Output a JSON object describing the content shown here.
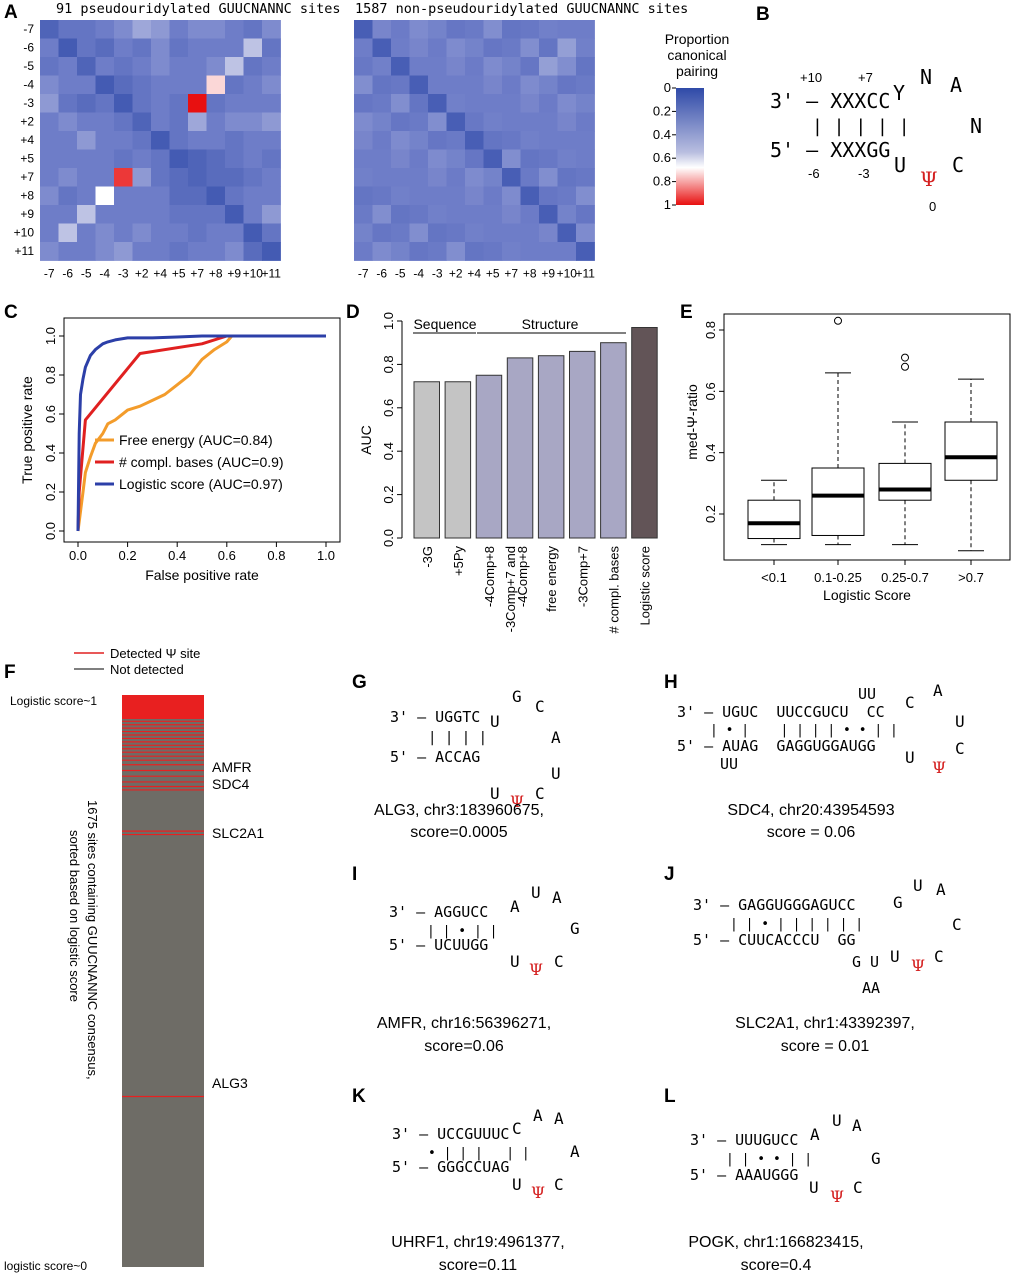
{
  "panel_letters": {
    "A": "A",
    "B": "B",
    "C": "C",
    "D": "D",
    "E": "E",
    "F": "F",
    "G": "G",
    "H": "H",
    "I": "I",
    "J": "J",
    "K": "K",
    "L": "L"
  },
  "panelA": {
    "title_left": "91 pseudouridylated GUUCNANNC sites",
    "title_right": "1587 non-pseudouridylated GUUCNANNC sites",
    "row_labels": [
      "-7",
      "-6",
      "-5",
      "-4",
      "-3",
      "+2",
      "+4",
      "+5",
      "+7",
      "+8",
      "+9",
      "+10",
      "+11"
    ],
    "col_labels": [
      "-7",
      "-6",
      "-5",
      "-4",
      "-3",
      "+2",
      "+4",
      "+5",
      "+7",
      "+8",
      "+9",
      "+10",
      "+11"
    ],
    "left_matrix": [
      [
        0.15,
        0.25,
        0.25,
        0.3,
        0.35,
        0.45,
        0.4,
        0.3,
        0.35,
        0.35,
        0.3,
        0.25,
        0.35
      ],
      [
        0.3,
        0.1,
        0.25,
        0.2,
        0.3,
        0.25,
        0.35,
        0.25,
        0.3,
        0.3,
        0.3,
        0.55,
        0.25
      ],
      [
        0.25,
        0.3,
        0.15,
        0.3,
        0.25,
        0.3,
        0.35,
        0.3,
        0.3,
        0.35,
        0.55,
        0.25,
        0.3
      ],
      [
        0.35,
        0.3,
        0.3,
        0.1,
        0.2,
        0.25,
        0.3,
        0.3,
        0.3,
        0.75,
        0.25,
        0.3,
        0.35
      ],
      [
        0.4,
        0.25,
        0.2,
        0.25,
        0.1,
        0.25,
        0.3,
        0.25,
        1.0,
        0.25,
        0.3,
        0.3,
        0.3
      ],
      [
        0.3,
        0.35,
        0.3,
        0.3,
        0.25,
        0.15,
        0.3,
        0.25,
        0.45,
        0.3,
        0.35,
        0.35,
        0.4
      ],
      [
        0.3,
        0.3,
        0.4,
        0.3,
        0.3,
        0.25,
        0.1,
        0.25,
        0.3,
        0.3,
        0.25,
        0.3,
        0.3
      ],
      [
        0.3,
        0.3,
        0.3,
        0.3,
        0.25,
        0.3,
        0.25,
        0.1,
        0.15,
        0.2,
        0.25,
        0.3,
        0.25
      ],
      [
        0.3,
        0.35,
        0.3,
        0.3,
        0.95,
        0.4,
        0.25,
        0.2,
        0.15,
        0.2,
        0.2,
        0.25,
        0.3
      ],
      [
        0.35,
        0.25,
        0.3,
        0.7,
        0.3,
        0.3,
        0.3,
        0.2,
        0.2,
        0.1,
        0.25,
        0.3,
        0.3
      ],
      [
        0.3,
        0.3,
        0.55,
        0.3,
        0.3,
        0.3,
        0.3,
        0.25,
        0.25,
        0.25,
        0.1,
        0.3,
        0.4
      ],
      [
        0.3,
        0.55,
        0.3,
        0.35,
        0.3,
        0.35,
        0.3,
        0.3,
        0.25,
        0.3,
        0.3,
        0.1,
        0.25
      ],
      [
        0.35,
        0.3,
        0.3,
        0.35,
        0.4,
        0.3,
        0.3,
        0.25,
        0.3,
        0.3,
        0.35,
        0.2,
        0.1
      ]
    ],
    "legend": {
      "title_line1": "Proportion",
      "title_line2": "canonical",
      "title_line3": "pairing",
      "ticks": [
        "0",
        "0.2",
        "0.4",
        "0.6",
        "0.8",
        "1"
      ]
    }
  },
  "panelB": {
    "top_nums": [
      "+10",
      "+7"
    ],
    "bottom_nums": [
      "-6",
      "-3"
    ],
    "strand3": "3' – XXXCC",
    "strand5": "5' – XXXGG",
    "pairs": "| | | | |",
    "loop": [
      "Y",
      "N",
      "A",
      "N",
      "C",
      "Ψ",
      "U"
    ],
    "zero": "0"
  },
  "chart_data": [
    {
      "type": "line",
      "title": "",
      "xlabel": "False positive rate",
      "ylabel": "True positive rate",
      "xlim": [
        0,
        1
      ],
      "ylim": [
        0,
        1
      ],
      "xticks": [
        "0.0",
        "0.2",
        "0.4",
        "0.6",
        "0.8",
        "1.0"
      ],
      "yticks": [
        "0.0",
        "0.2",
        "0.4",
        "0.6",
        "0.8",
        "1.0"
      ],
      "series": [
        {
          "name": "Free energy (AUC=0.84)",
          "color": "#f39c2b",
          "x": [
            0,
            0.01,
            0.02,
            0.03,
            0.05,
            0.07,
            0.1,
            0.12,
            0.15,
            0.2,
            0.25,
            0.3,
            0.35,
            0.4,
            0.45,
            0.5,
            0.55,
            0.6,
            0.62,
            0.65,
            0.7,
            0.8,
            0.9,
            1.0
          ],
          "y": [
            0,
            0.1,
            0.2,
            0.3,
            0.38,
            0.45,
            0.5,
            0.55,
            0.57,
            0.62,
            0.64,
            0.67,
            0.7,
            0.75,
            0.8,
            0.88,
            0.93,
            0.97,
            1.0,
            1.0,
            1.0,
            1.0,
            1.0,
            1.0
          ]
        },
        {
          "name": "# compl. bases (AUC=0.9)",
          "color": "#e02020",
          "x": [
            0,
            0.005,
            0.03,
            0.25,
            0.5,
            0.6,
            1.0
          ],
          "y": [
            0,
            0.2,
            0.57,
            0.91,
            0.96,
            1.0,
            1.0
          ]
        },
        {
          "name": "Logistic score (AUC=0.97)",
          "color": "#2c3fa8",
          "x": [
            0,
            0.005,
            0.01,
            0.02,
            0.03,
            0.05,
            0.07,
            0.1,
            0.12,
            0.15,
            0.2,
            0.3,
            0.4,
            0.5,
            0.6,
            0.7,
            1.0
          ],
          "y": [
            0,
            0.5,
            0.7,
            0.78,
            0.84,
            0.9,
            0.93,
            0.96,
            0.97,
            0.98,
            0.99,
            0.99,
            0.995,
            1.0,
            1.0,
            1.0,
            1.0
          ]
        }
      ]
    },
    {
      "type": "bar",
      "title": "",
      "ylabel": "AUC",
      "ylim": [
        0,
        1
      ],
      "yticks": [
        "0.0",
        "0.2",
        "0.4",
        "0.6",
        "0.8",
        "1.0"
      ],
      "categories": [
        "-3G",
        "+5Py",
        "-4Comp+8",
        "-3Comp+7 and -4Comp+8",
        "free energy",
        "-3Comp+7",
        "# compl. bases",
        "Logistic score"
      ],
      "values": [
        0.72,
        0.72,
        0.75,
        0.83,
        0.84,
        0.86,
        0.9,
        0.97
      ],
      "group_labels": [
        "Sequence",
        "Structure"
      ]
    },
    {
      "type": "box",
      "title": "",
      "xlabel": "Logistic Score",
      "ylabel": "med-Ψ-ratio",
      "ylim": [
        0.07,
        0.85
      ],
      "yticks": [
        "0.2",
        "0.4",
        "0.6",
        "0.8"
      ],
      "categories": [
        "<0.1",
        "0.1-0.25",
        "0.25-0.7",
        ">0.7"
      ],
      "boxes": [
        {
          "min": 0.1,
          "q1": 0.12,
          "median": 0.17,
          "q3": 0.245,
          "max": 0.31,
          "outliers": []
        },
        {
          "min": 0.1,
          "q1": 0.13,
          "median": 0.26,
          "q3": 0.35,
          "max": 0.66,
          "outliers": [
            0.83
          ]
        },
        {
          "min": 0.1,
          "q1": 0.245,
          "median": 0.28,
          "q3": 0.365,
          "max": 0.5,
          "outliers": [
            0.68,
            0.71
          ]
        },
        {
          "min": 0.08,
          "q1": 0.31,
          "median": 0.385,
          "q3": 0.5,
          "max": 0.64,
          "outliers": []
        }
      ]
    }
  ],
  "panelF": {
    "legend_detected": "Detected Ψ site",
    "legend_not": "Not detected",
    "top_label": "Logistic score~1",
    "bottom_label": "logistic score~0",
    "rot_line1": "1675 sites containing GUUCNANNC consensus,",
    "rot_line2": "sorted based on logistic score",
    "genes": [
      "AMFR",
      "SDC4",
      "SLC2A1",
      "ALG3"
    ],
    "detected_rank_fractions": [
      0.004,
      0.01,
      0.016,
      0.022,
      0.028,
      0.034,
      0.04,
      0.046,
      0.052,
      0.058,
      0.065,
      0.072,
      0.08,
      0.09,
      0.1,
      0.11,
      0.118,
      0.124,
      0.196,
      0.202,
      0.66
    ]
  },
  "structures": {
    "G": {
      "s3": "3' – UGGTC",
      "pairs": "| | | |",
      "s5": "5' – ACCAG",
      "loop": [
        "U",
        "G",
        "C",
        "A",
        "U",
        "C",
        "Ψ",
        "U"
      ],
      "c1": "ALG3, chr3:183960675,",
      "c2": "score=0.0005"
    },
    "H": {
      "s3": "3' – UGUC  UUCCGUCU  CC",
      "pairs": "| • |    | | | | • • | |",
      "s5": "5' – AUAG  GAGGUGGAUGG",
      "bulge_top": "UU",
      "bulge_bot": "UU",
      "loop": [
        "C",
        "A",
        "U",
        "C",
        "Ψ",
        "U"
      ],
      "c1": "SDC4, chr20:43954593",
      "c2": "score = 0.06"
    },
    "I": {
      "s3": "3' – AGGUCC",
      "pairs": "| | • | |",
      "s5": "5' – UCUUGG",
      "loop": [
        "A",
        "U",
        "A",
        "G",
        "C",
        "Ψ",
        "U"
      ],
      "c1": "AMFR, chr16:56396271,",
      "c2": "score=0.06"
    },
    "J": {
      "s3": "3' – GAGGUGGGAGUCC",
      "pairs": "| | • | | | | | |",
      "s5": "5' – CUUCACCCU  GG",
      "bulge": [
        "G U",
        "AA"
      ],
      "loop": [
        "G",
        "U",
        "A",
        "C",
        "C",
        "Ψ",
        "U"
      ],
      "c1": "SLC2A1, chr1:43392397,",
      "c2": "score = 0.01"
    },
    "K": {
      "s3": "3' – UCCGUUUC",
      "pairs": "• | | |   | |",
      "s5": "5' – GGGCCUAG",
      "loop": [
        "C",
        "A",
        "A",
        "A",
        "C",
        "Ψ",
        "U"
      ],
      "c1": "UHRF1, chr19:4961377,",
      "c2": "score=0.11"
    },
    "L": {
      "s3": "3' – UUUGUCC",
      "pairs": "| | • • | |",
      "s5": "5' – AAAUGGG",
      "loop": [
        "A",
        "U",
        "A",
        "G",
        "C",
        "Ψ",
        "U"
      ],
      "c1": "POGK, chr1:166823415,",
      "c2": "score=0.4"
    }
  }
}
